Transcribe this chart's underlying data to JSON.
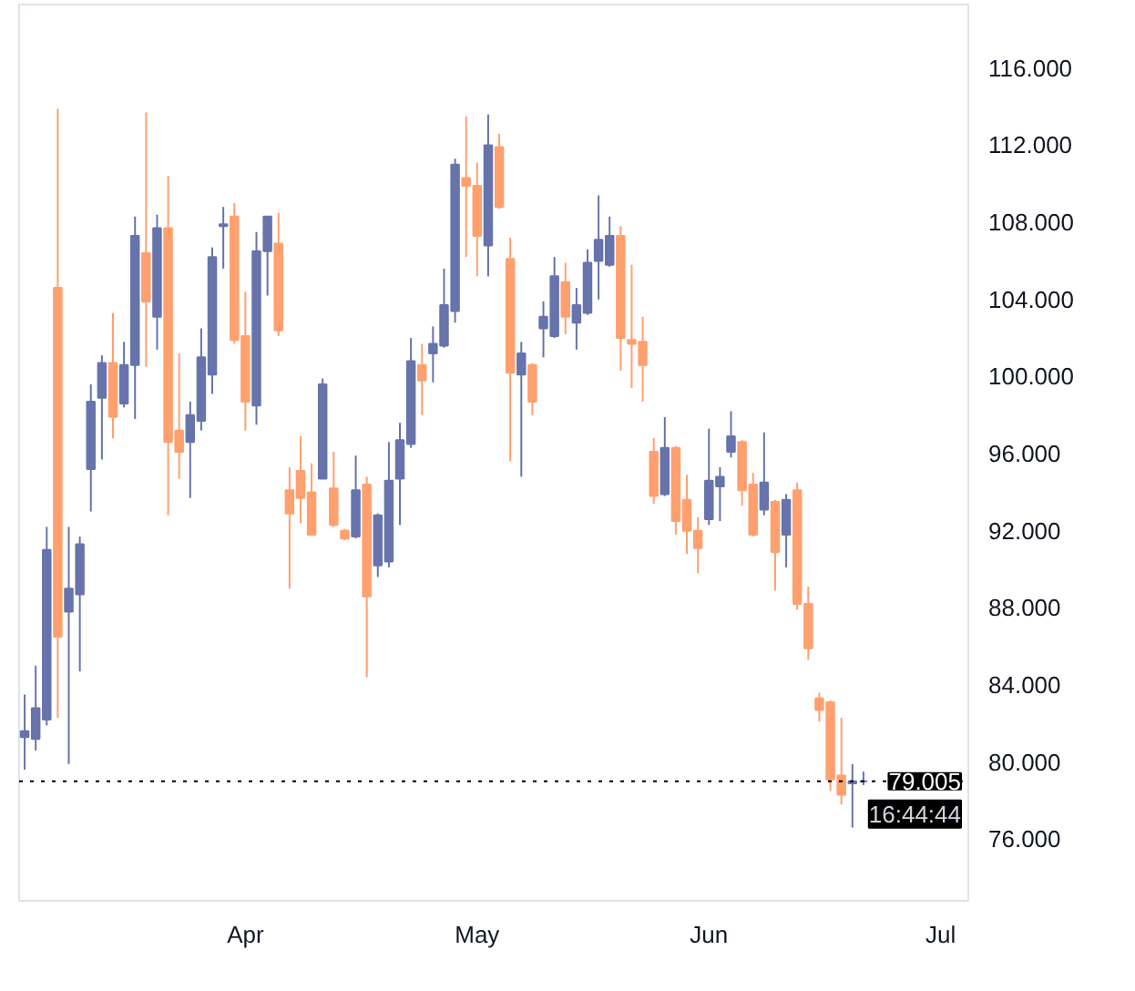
{
  "chart_data": {
    "type": "candlestick",
    "categories": [
      null,
      null,
      null,
      null,
      null,
      null,
      null,
      null,
      null,
      null,
      null,
      null,
      null,
      null,
      null,
      null,
      null,
      null,
      null,
      null,
      "Apr",
      null,
      null,
      null,
      null,
      null,
      null,
      null,
      null,
      null,
      null,
      null,
      null,
      null,
      null,
      null,
      null,
      null,
      null,
      null,
      null,
      "May",
      null,
      null,
      null,
      null,
      null,
      null,
      null,
      null,
      null,
      null,
      null,
      null,
      null,
      null,
      null,
      null,
      null,
      null,
      null,
      null,
      "Jun",
      null,
      null,
      null,
      null,
      null,
      null,
      null,
      null,
      null,
      null,
      null,
      null,
      null,
      null,
      null,
      null,
      null,
      null,
      null,
      null,
      "Jul",
      null,
      null
    ],
    "ohlc": [
      [
        81.3,
        83.5,
        79.6,
        81.6
      ],
      [
        81.2,
        85.0,
        80.6,
        82.8
      ],
      [
        82.2,
        92.2,
        81.9,
        91.0
      ],
      [
        104.6,
        113.9,
        82.3,
        86.5
      ],
      [
        87.8,
        92.2,
        79.9,
        89.0
      ],
      [
        88.7,
        91.7,
        84.7,
        91.3
      ],
      [
        95.2,
        99.6,
        93.0,
        98.7
      ],
      [
        98.9,
        101.1,
        95.7,
        100.7
      ],
      [
        100.7,
        103.3,
        96.8,
        97.9
      ],
      [
        98.6,
        101.8,
        98.4,
        100.6
      ],
      [
        100.6,
        108.3,
        97.8,
        107.3
      ],
      [
        106.4,
        113.7,
        100.5,
        103.9
      ],
      [
        103.1,
        108.4,
        101.4,
        107.7
      ],
      [
        107.7,
        110.4,
        92.8,
        96.6
      ],
      [
        97.2,
        101.2,
        94.7,
        96.1
      ],
      [
        96.6,
        98.7,
        93.7,
        98.0
      ],
      [
        97.7,
        102.5,
        97.2,
        101.0
      ],
      [
        100.1,
        106.7,
        99.1,
        106.2
      ],
      [
        107.8,
        108.8,
        105.6,
        107.9
      ],
      [
        108.3,
        109.0,
        101.7,
        101.9
      ],
      [
        102.1,
        104.4,
        97.2,
        98.7
      ],
      [
        98.5,
        107.5,
        97.5,
        106.5
      ],
      [
        106.5,
        108.3,
        104.2,
        108.3
      ],
      [
        106.9,
        108.5,
        102.1,
        102.4
      ],
      [
        94.1,
        95.3,
        89.0,
        92.9
      ],
      [
        95.1,
        96.9,
        92.4,
        93.7
      ],
      [
        94.0,
        95.5,
        91.8,
        91.8
      ],
      [
        94.7,
        99.9,
        94.7,
        99.6
      ],
      [
        94.2,
        96.1,
        92.2,
        92.3
      ],
      [
        92.0,
        92.1,
        91.5,
        91.6
      ],
      [
        91.7,
        95.9,
        91.6,
        94.1
      ],
      [
        94.4,
        94.8,
        84.4,
        88.6
      ],
      [
        90.2,
        92.9,
        89.6,
        92.8
      ],
      [
        90.4,
        96.6,
        90.1,
        94.6
      ],
      [
        94.7,
        97.6,
        92.3,
        96.7
      ],
      [
        96.5,
        102.0,
        96.3,
        100.8
      ],
      [
        100.6,
        101.7,
        98.0,
        99.8
      ],
      [
        101.2,
        102.6,
        99.7,
        101.7
      ],
      [
        101.6,
        105.6,
        101.5,
        103.7
      ],
      [
        103.4,
        111.3,
        102.8,
        111.0
      ],
      [
        110.3,
        113.5,
        106.2,
        109.9
      ],
      [
        109.9,
        111.1,
        105.2,
        107.3
      ],
      [
        106.8,
        113.6,
        105.2,
        112.0
      ],
      [
        111.9,
        112.6,
        108.7,
        108.8
      ],
      [
        106.1,
        107.2,
        95.6,
        100.2
      ],
      [
        100.1,
        101.8,
        94.8,
        101.2
      ],
      [
        100.6,
        100.7,
        98.0,
        98.7
      ],
      [
        102.5,
        103.9,
        101.0,
        103.1
      ],
      [
        102.1,
        106.2,
        102.0,
        105.2
      ],
      [
        104.9,
        105.9,
        102.2,
        103.1
      ],
      [
        102.8,
        104.6,
        101.4,
        103.7
      ],
      [
        103.3,
        106.6,
        103.2,
        105.9
      ],
      [
        106.0,
        109.4,
        104.0,
        107.1
      ],
      [
        105.8,
        108.3,
        105.7,
        107.3
      ],
      [
        107.3,
        107.8,
        100.3,
        102.0
      ],
      [
        101.9,
        105.8,
        99.4,
        101.7
      ],
      [
        101.8,
        103.1,
        98.7,
        100.6
      ],
      [
        96.1,
        96.8,
        93.4,
        93.8
      ],
      [
        93.9,
        97.9,
        93.8,
        96.3
      ],
      [
        96.3,
        96.4,
        91.8,
        92.5
      ],
      [
        93.6,
        94.9,
        90.8,
        92.0
      ],
      [
        92.0,
        92.7,
        89.8,
        91.1
      ],
      [
        92.6,
        97.3,
        92.3,
        94.6
      ],
      [
        94.3,
        95.3,
        92.5,
        94.8
      ],
      [
        96.1,
        98.2,
        95.8,
        96.9
      ],
      [
        96.6,
        96.7,
        93.3,
        94.1
      ],
      [
        94.4,
        95.0,
        91.7,
        91.8
      ],
      [
        93.1,
        97.1,
        92.8,
        94.5
      ],
      [
        93.5,
        93.6,
        88.9,
        90.9
      ],
      [
        91.8,
        93.9,
        90.1,
        93.6
      ],
      [
        94.1,
        94.5,
        87.9,
        88.2
      ],
      [
        88.2,
        89.1,
        85.3,
        85.9
      ],
      [
        83.3,
        83.6,
        82.1,
        82.7
      ],
      [
        83.1,
        83.2,
        78.5,
        79.1
      ],
      [
        79.3,
        82.3,
        77.8,
        78.3
      ],
      [
        78.9,
        79.9,
        76.6,
        79.0
      ],
      [
        79.0,
        79.5,
        78.8,
        79.0
      ],
      null,
      null,
      null,
      null,
      null,
      null,
      null,
      null,
      null
    ],
    "colors": [
      "#6774ab",
      "#6774ab",
      "#6774ab",
      "#ffa06e",
      "#6774ab",
      "#6774ab",
      "#6774ab",
      "#6774ab",
      "#ffa06e",
      "#6774ab",
      "#6774ab",
      "#ffa06e",
      "#6774ab",
      "#ffa06e",
      "#ffa06e",
      "#6774ab",
      "#6774ab",
      "#6774ab",
      "#6774ab",
      "#ffa06e",
      "#ffa06e",
      "#6774ab",
      "#6774ab",
      "#ffa06e",
      "#ffa06e",
      "#ffa06e",
      "#ffa06e",
      "#6774ab",
      "#ffa06e",
      "#ffa06e",
      "#6774ab",
      "#ffa06e",
      "#6774ab",
      "#6774ab",
      "#6774ab",
      "#6774ab",
      "#ffa06e",
      "#6774ab",
      "#6774ab",
      "#6774ab",
      "#ffa06e",
      "#ffa06e",
      "#6774ab",
      "#ffa06e",
      "#ffa06e",
      "#6774ab",
      "#ffa06e",
      "#6774ab",
      "#6774ab",
      "#ffa06e",
      "#6774ab",
      "#6774ab",
      "#6774ab",
      "#6774ab",
      "#ffa06e",
      "#ffa06e",
      "#ffa06e",
      "#ffa06e",
      "#6774ab",
      "#ffa06e",
      "#ffa06e",
      "#ffa06e",
      "#6774ab",
      "#6774ab",
      "#6774ab",
      "#ffa06e",
      "#ffa06e",
      "#6774ab",
      "#ffa06e",
      "#6774ab",
      "#ffa06e",
      "#ffa06e",
      "#ffa06e",
      "#ffa06e",
      "#ffa06e",
      "#6774ab",
      "#6774ab",
      null,
      null,
      null,
      null,
      null,
      null,
      null,
      null,
      null
    ],
    "ylim": [
      72.8,
      119.3
    ],
    "yticks": [
      {
        "value": 76,
        "label": "76.000"
      },
      {
        "value": 80,
        "label": "80.000"
      },
      {
        "value": 84,
        "label": "84.000"
      },
      {
        "value": 88,
        "label": "88.000"
      },
      {
        "value": 92,
        "label": "92.000"
      },
      {
        "value": 96,
        "label": "96.000"
      },
      {
        "value": 100,
        "label": "100.000"
      },
      {
        "value": 104,
        "label": "104.000"
      },
      {
        "value": 108,
        "label": "108.000"
      },
      {
        "value": 112,
        "label": "112.000"
      },
      {
        "value": 116,
        "label": "116.000"
      }
    ],
    "ref_lines": [
      {
        "axis": "y",
        "value": 79.005,
        "label": "79.005",
        "color": "#000000",
        "line_style": "dotted"
      }
    ],
    "annotations": [
      "16:44:44"
    ]
  }
}
